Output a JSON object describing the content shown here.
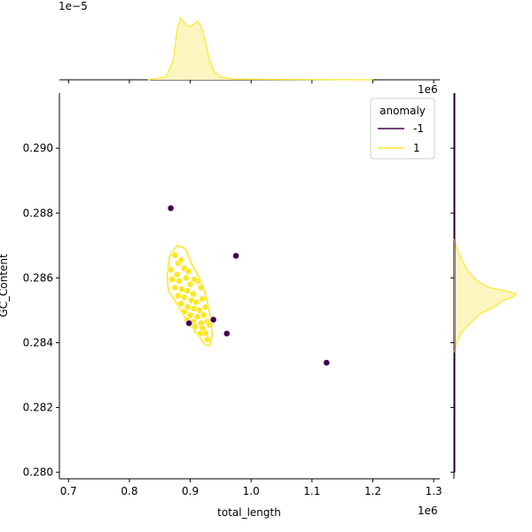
{
  "chart_data": {
    "type": "scatter",
    "subtype": "jointplot",
    "xlabel": "total_length",
    "ylabel": "GC_Content",
    "x_offset_label": "1e6",
    "marginal_x_offset_label": "1e6",
    "marginal_y_offset_label": "1e−5",
    "xlim": [
      0.685,
      1.31
    ],
    "ylim": [
      0.2798,
      0.2917
    ],
    "xticks": [
      "0.7",
      "0.8",
      "0.9",
      "1.0",
      "1.1",
      "1.2",
      "1.3"
    ],
    "yticks": [
      "0.280",
      "0.282",
      "0.284",
      "0.286",
      "0.288",
      "0.290"
    ],
    "grid": false,
    "legend": {
      "title": "anomaly",
      "position": "top-right",
      "entries": [
        {
          "label": "-1",
          "color": "#440154"
        },
        {
          "label": "1",
          "color": "#fde725"
        }
      ]
    },
    "colors": {
      "anomaly_neg": "#440154",
      "anomaly_pos": "#fde725",
      "kde_fill": "#fdf5c0"
    },
    "series": [
      {
        "name": "-1",
        "points": [
          {
            "x": 0.868,
            "y": 0.28815
          },
          {
            "x": 0.975,
            "y": 0.28668
          },
          {
            "x": 0.938,
            "y": 0.28471
          },
          {
            "x": 0.96,
            "y": 0.28428
          },
          {
            "x": 1.124,
            "y": 0.28338
          },
          {
            "x": 0.898,
            "y": 0.2846
          }
        ]
      },
      {
        "name": "1",
        "points": [
          {
            "x": 0.875,
            "y": 0.2867
          },
          {
            "x": 0.88,
            "y": 0.28645
          },
          {
            "x": 0.885,
            "y": 0.28655
          },
          {
            "x": 0.89,
            "y": 0.2863
          },
          {
            "x": 0.878,
            "y": 0.2861
          },
          {
            "x": 0.87,
            "y": 0.28595
          },
          {
            "x": 0.882,
            "y": 0.2859
          },
          {
            "x": 0.893,
            "y": 0.286
          },
          {
            "x": 0.9,
            "y": 0.2858
          },
          {
            "x": 0.875,
            "y": 0.2857
          },
          {
            "x": 0.886,
            "y": 0.28565
          },
          {
            "x": 0.895,
            "y": 0.2856
          },
          {
            "x": 0.905,
            "y": 0.2855
          },
          {
            "x": 0.912,
            "y": 0.2859
          },
          {
            "x": 0.918,
            "y": 0.2857
          },
          {
            "x": 0.88,
            "y": 0.28545
          },
          {
            "x": 0.89,
            "y": 0.2854
          },
          {
            "x": 0.902,
            "y": 0.2853
          },
          {
            "x": 0.91,
            "y": 0.28525
          },
          {
            "x": 0.92,
            "y": 0.28535
          },
          {
            "x": 0.885,
            "y": 0.2852
          },
          {
            "x": 0.896,
            "y": 0.2851
          },
          {
            "x": 0.906,
            "y": 0.28505
          },
          {
            "x": 0.915,
            "y": 0.285
          },
          {
            "x": 0.925,
            "y": 0.2851
          },
          {
            "x": 0.89,
            "y": 0.28495
          },
          {
            "x": 0.9,
            "y": 0.28485
          },
          {
            "x": 0.912,
            "y": 0.2848
          },
          {
            "x": 0.922,
            "y": 0.28485
          },
          {
            "x": 0.895,
            "y": 0.2847
          },
          {
            "x": 0.905,
            "y": 0.28465
          },
          {
            "x": 0.918,
            "y": 0.2846
          },
          {
            "x": 0.928,
            "y": 0.28465
          },
          {
            "x": 0.908,
            "y": 0.2845
          },
          {
            "x": 0.92,
            "y": 0.28445
          },
          {
            "x": 0.932,
            "y": 0.28455
          },
          {
            "x": 0.925,
            "y": 0.2843
          },
          {
            "x": 0.917,
            "y": 0.28428
          },
          {
            "x": 0.928,
            "y": 0.2841
          },
          {
            "x": 0.868,
            "y": 0.28625
          },
          {
            "x": 0.897,
            "y": 0.2862
          },
          {
            "x": 0.907,
            "y": 0.28595
          }
        ]
      }
    ]
  }
}
